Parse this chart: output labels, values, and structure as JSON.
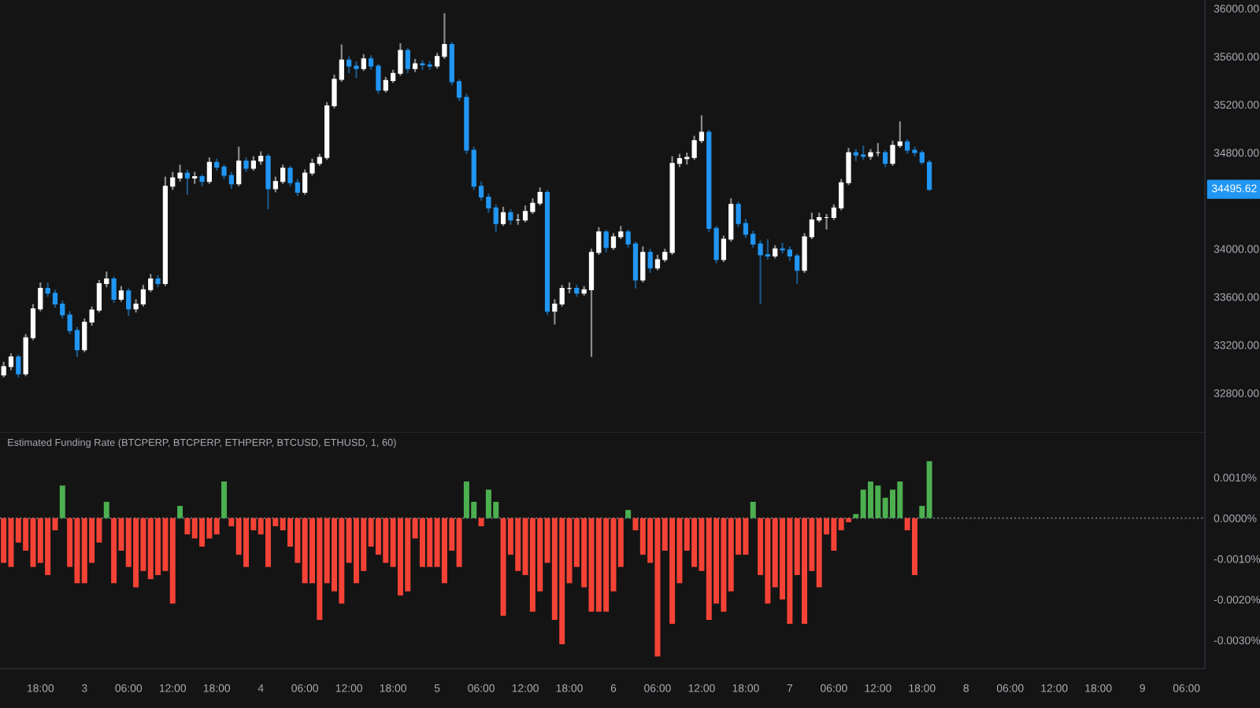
{
  "chart_data": [
    {
      "type": "candlestick",
      "categories": [
        null,
        null,
        null,
        null,
        null,
        null,
        null,
        null,
        null,
        null,
        null,
        null,
        null,
        null,
        null,
        null,
        null,
        null,
        null,
        null,
        null,
        null,
        null,
        null,
        null,
        null,
        null,
        null,
        null,
        null,
        null,
        null,
        null,
        null,
        null,
        null,
        null,
        null,
        null,
        null,
        null,
        null,
        null,
        null,
        null,
        null,
        null,
        null,
        null,
        null,
        null,
        null,
        null,
        null,
        null,
        null,
        null,
        null,
        null,
        null,
        null,
        null,
        null,
        null,
        null,
        null,
        null,
        null,
        null,
        null,
        null,
        null,
        null,
        null,
        null,
        null,
        null,
        null,
        null,
        null,
        null,
        null,
        null,
        null,
        null,
        null,
        null,
        null,
        null,
        null,
        null,
        null,
        null,
        null,
        null,
        null,
        null,
        null,
        null,
        null,
        null,
        null,
        null,
        null,
        null,
        null,
        null,
        null,
        null,
        null,
        null,
        null,
        null,
        null,
        null,
        null,
        null,
        null,
        null,
        null,
        null,
        null,
        null,
        null,
        null,
        null,
        null,
        null,
        null,
        null,
        null,
        null,
        null,
        null,
        null,
        null,
        null,
        null,
        null,
        null,
        null,
        null,
        null,
        null,
        null,
        null,
        null,
        null,
        null,
        null,
        null,
        null,
        null,
        null,
        null,
        null,
        null,
        null,
        null,
        null,
        null,
        null,
        null,
        null
      ],
      "ohlc": [
        [
          32950,
          33060,
          32930,
          33020
        ],
        [
          33020,
          33130,
          32990,
          33100
        ],
        [
          33100,
          33120,
          32930,
          32960
        ],
        [
          32960,
          33290,
          32940,
          33260
        ],
        [
          33260,
          33540,
          33240,
          33500
        ],
        [
          33500,
          33720,
          33480,
          33670
        ],
        [
          33670,
          33720,
          33600,
          33630
        ],
        [
          33630,
          33660,
          33510,
          33540
        ],
        [
          33540,
          33570,
          33420,
          33450
        ],
        [
          33450,
          33480,
          33290,
          33320
        ],
        [
          33320,
          33350,
          33100,
          33160
        ],
        [
          33160,
          33420,
          33140,
          33390
        ],
        [
          33390,
          33520,
          33360,
          33490
        ],
        [
          33490,
          33740,
          33470,
          33710
        ],
        [
          33710,
          33810,
          33680,
          33750
        ],
        [
          33750,
          33770,
          33550,
          33580
        ],
        [
          33580,
          33690,
          33560,
          33650
        ],
        [
          33650,
          33670,
          33440,
          33500
        ],
        [
          33500,
          33580,
          33470,
          33540
        ],
        [
          33540,
          33700,
          33520,
          33660
        ],
        [
          33660,
          33790,
          33640,
          33750
        ],
        [
          33750,
          33780,
          33680,
          33710
        ],
        [
          33710,
          34600,
          33690,
          34520
        ],
        [
          34520,
          34640,
          34490,
          34590
        ],
        [
          34590,
          34700,
          34560,
          34630
        ],
        [
          34630,
          34660,
          34450,
          34590
        ],
        [
          34590,
          34640,
          34540,
          34600
        ],
        [
          34600,
          34620,
          34520,
          34560
        ],
        [
          34560,
          34760,
          34540,
          34720
        ],
        [
          34720,
          34750,
          34650,
          34680
        ],
        [
          34680,
          34700,
          34580,
          34610
        ],
        [
          34610,
          34640,
          34500,
          34540
        ],
        [
          34540,
          34850,
          34520,
          34730
        ],
        [
          34730,
          34760,
          34640,
          34670
        ],
        [
          34670,
          34770,
          34650,
          34730
        ],
        [
          34730,
          34810,
          34700,
          34770
        ],
        [
          34770,
          34790,
          34330,
          34500
        ],
        [
          34500,
          34600,
          34470,
          34560
        ],
        [
          34560,
          34700,
          34540,
          34670
        ],
        [
          34670,
          34690,
          34520,
          34550
        ],
        [
          34550,
          34580,
          34440,
          34470
        ],
        [
          34470,
          34660,
          34450,
          34630
        ],
        [
          34630,
          34750,
          34610,
          34710
        ],
        [
          34710,
          34790,
          34690,
          34760
        ],
        [
          34760,
          35220,
          34740,
          35190
        ],
        [
          35190,
          35450,
          35170,
          35410
        ],
        [
          35410,
          35700,
          35390,
          35570
        ],
        [
          35570,
          35600,
          35460,
          35520
        ],
        [
          35520,
          35560,
          35420,
          35500
        ],
        [
          35500,
          35620,
          35480,
          35580
        ],
        [
          35580,
          35610,
          35490,
          35520
        ],
        [
          35520,
          35540,
          35290,
          35320
        ],
        [
          35320,
          35430,
          35300,
          35400
        ],
        [
          35400,
          35490,
          35380,
          35460
        ],
        [
          35460,
          35710,
          35440,
          35650
        ],
        [
          35650,
          35670,
          35460,
          35500
        ],
        [
          35500,
          35580,
          35470,
          35540
        ],
        [
          35540,
          35570,
          35490,
          35530
        ],
        [
          35530,
          35560,
          35490,
          35520
        ],
        [
          35520,
          35630,
          35500,
          35600
        ],
        [
          35600,
          35960,
          35580,
          35700
        ],
        [
          35700,
          35720,
          35360,
          35390
        ],
        [
          35390,
          35410,
          35230,
          35260
        ],
        [
          35260,
          35290,
          34790,
          34820
        ],
        [
          34820,
          34850,
          34490,
          34520
        ],
        [
          34520,
          34560,
          34400,
          34430
        ],
        [
          34430,
          34460,
          34300,
          34340
        ],
        [
          34340,
          34370,
          34140,
          34210
        ],
        [
          34210,
          34350,
          34190,
          34300
        ],
        [
          34300,
          34330,
          34200,
          34240
        ],
        [
          34240,
          34290,
          34200,
          34240
        ],
        [
          34240,
          34360,
          34220,
          34310
        ],
        [
          34310,
          34420,
          34290,
          34380
        ],
        [
          34380,
          34510,
          34360,
          34470
        ],
        [
          34470,
          34490,
          33450,
          33480
        ],
        [
          33480,
          33580,
          33370,
          33540
        ],
        [
          33540,
          33700,
          33520,
          33670
        ],
        [
          33670,
          33720,
          33630,
          33670
        ],
        [
          33670,
          33700,
          33600,
          33630
        ],
        [
          33630,
          33690,
          33610,
          33660
        ],
        [
          33660,
          34000,
          33100,
          33970
        ],
        [
          33970,
          34180,
          33950,
          34140
        ],
        [
          34140,
          34160,
          33970,
          34010
        ],
        [
          34010,
          34130,
          33990,
          34100
        ],
        [
          34100,
          34190,
          34080,
          34140
        ],
        [
          34140,
          34160,
          34010,
          34040
        ],
        [
          34040,
          34060,
          33670,
          33740
        ],
        [
          33740,
          34020,
          33720,
          33970
        ],
        [
          33970,
          34000,
          33800,
          33840
        ],
        [
          33840,
          33950,
          33820,
          33910
        ],
        [
          33910,
          34000,
          33890,
          33970
        ],
        [
          33970,
          34770,
          33950,
          34710
        ],
        [
          34710,
          34790,
          34680,
          34750
        ],
        [
          34750,
          34800,
          34700,
          34760
        ],
        [
          34760,
          34940,
          34740,
          34900
        ],
        [
          34900,
          35110,
          34880,
          34970
        ],
        [
          34970,
          34990,
          34140,
          34170
        ],
        [
          34170,
          34190,
          33880,
          33910
        ],
        [
          33910,
          34110,
          33890,
          34080
        ],
        [
          34080,
          34420,
          34060,
          34370
        ],
        [
          34370,
          34390,
          34180,
          34210
        ],
        [
          34210,
          34250,
          34090,
          34120
        ],
        [
          34120,
          34150,
          34010,
          34040
        ],
        [
          34040,
          34070,
          33540,
          33950
        ],
        [
          33950,
          34080,
          33910,
          33940
        ],
        [
          33940,
          34030,
          33920,
          34000
        ],
        [
          34000,
          34050,
          33960,
          33990
        ],
        [
          33990,
          34020,
          33900,
          33940
        ],
        [
          33940,
          33960,
          33710,
          33820
        ],
        [
          33820,
          34130,
          33800,
          34100
        ],
        [
          34100,
          34300,
          34080,
          34240
        ],
        [
          34240,
          34300,
          34220,
          34260
        ],
        [
          34260,
          34290,
          34160,
          34260
        ],
        [
          34260,
          34370,
          34240,
          34340
        ],
        [
          34340,
          34580,
          34320,
          34550
        ],
        [
          34550,
          34840,
          34530,
          34800
        ],
        [
          34800,
          34830,
          34730,
          34780
        ],
        [
          34780,
          34860,
          34740,
          34770
        ],
        [
          34770,
          34830,
          34740,
          34800
        ],
        [
          34800,
          34880,
          34770,
          34800
        ],
        [
          34800,
          34820,
          34680,
          34710
        ],
        [
          34710,
          34900,
          34690,
          34860
        ],
        [
          34860,
          35060,
          34840,
          34890
        ],
        [
          34890,
          34910,
          34790,
          34820
        ],
        [
          34820,
          34850,
          34770,
          34800
        ],
        [
          34800,
          34820,
          34700,
          34720
        ],
        [
          34720,
          34740,
          34480,
          34495
        ],
        null,
        null,
        null,
        null,
        null,
        null,
        null,
        null,
        null,
        null,
        null,
        null,
        null,
        null,
        null,
        null,
        null,
        null,
        null,
        null,
        null,
        null,
        null,
        null,
        null,
        null,
        null,
        null,
        null,
        null,
        null,
        null,
        null,
        null,
        null,
        null,
        null
      ],
      "colors": [
        "#ffffff",
        "#ffffff",
        "#2196f3",
        "#ffffff",
        "#ffffff",
        "#ffffff",
        "#2196f3",
        "#2196f3",
        "#2196f3",
        "#2196f3",
        "#2196f3",
        "#ffffff",
        "#ffffff",
        "#ffffff",
        "#ffffff",
        "#2196f3",
        "#ffffff",
        "#2196f3",
        "#ffffff",
        "#ffffff",
        "#ffffff",
        "#2196f3",
        "#ffffff",
        "#ffffff",
        "#ffffff",
        "#2196f3",
        "#ffffff",
        "#2196f3",
        "#ffffff",
        "#2196f3",
        "#2196f3",
        "#2196f3",
        "#ffffff",
        "#2196f3",
        "#ffffff",
        "#ffffff",
        "#2196f3",
        "#ffffff",
        "#ffffff",
        "#2196f3",
        "#2196f3",
        "#ffffff",
        "#ffffff",
        "#ffffff",
        "#ffffff",
        "#ffffff",
        "#ffffff",
        "#2196f3",
        "#2196f3",
        "#ffffff",
        "#2196f3",
        "#2196f3",
        "#ffffff",
        "#ffffff",
        "#ffffff",
        "#2196f3",
        "#ffffff",
        "#2196f3",
        "#2196f3",
        "#ffffff",
        "#ffffff",
        "#2196f3",
        "#2196f3",
        "#2196f3",
        "#2196f3",
        "#2196f3",
        "#2196f3",
        "#2196f3",
        "#ffffff",
        "#2196f3",
        "#ffffff",
        "#ffffff",
        "#ffffff",
        "#ffffff",
        "#2196f3",
        "#ffffff",
        "#ffffff",
        "#ffffff",
        "#2196f3",
        "#ffffff",
        "#ffffff",
        "#ffffff",
        "#2196f3",
        "#ffffff",
        "#ffffff",
        "#2196f3",
        "#2196f3",
        "#ffffff",
        "#2196f3",
        "#ffffff",
        "#ffffff",
        "#ffffff",
        "#ffffff",
        "#ffffff",
        "#ffffff",
        "#ffffff",
        "#2196f3",
        "#2196f3",
        "#ffffff",
        "#ffffff",
        "#2196f3",
        "#2196f3",
        "#2196f3",
        "#2196f3",
        "#2196f3",
        "#ffffff",
        "#2196f3",
        "#2196f3",
        "#2196f3",
        "#ffffff",
        "#ffffff",
        "#ffffff",
        "#ffffff",
        "#ffffff",
        "#ffffff",
        "#ffffff",
        "#2196f3",
        "#2196f3",
        "#ffffff",
        "#ffffff",
        "#2196f3",
        "#ffffff",
        "#ffffff",
        "#2196f3",
        "#2196f3",
        "#2196f3",
        "#2196f3",
        null,
        null,
        null,
        null,
        null,
        null,
        null,
        null,
        null,
        null,
        null,
        null,
        null,
        null,
        null,
        null,
        null,
        null,
        null,
        null,
        null,
        null,
        null,
        null,
        null,
        null,
        null,
        null,
        null,
        null,
        null,
        null,
        null,
        null,
        null,
        null,
        null
      ],
      "ylim": [
        32470,
        36070
      ],
      "yticks": [
        {
          "value": 32800,
          "label": "32800.00"
        },
        {
          "value": 33200,
          "label": "33200.00"
        },
        {
          "value": 33600,
          "label": "33600.00"
        },
        {
          "value": 34000,
          "label": "34000.00"
        },
        {
          "value": 34800,
          "label": "34800.00"
        },
        {
          "value": 35200,
          "label": "35200.00"
        },
        {
          "value": 35600,
          "label": "35600.00"
        },
        {
          "value": 36000,
          "label": "36000.00"
        }
      ],
      "tick_labels": "y",
      "annotations": [
        {
          "text": "34495.62",
          "y": 34495
        }
      ]
    },
    {
      "type": "bar",
      "title": "Estimated Funding Rate (BTCPERP, BTCPERP, ETHPERP, BTCUSD, ETHUSD, 1, 60)",
      "categories": [
        null,
        null,
        null,
        null,
        null,
        "18:00",
        null,
        null,
        null,
        null,
        null,
        "3",
        null,
        null,
        null,
        null,
        null,
        "06:00",
        null,
        null,
        null,
        null,
        null,
        "12:00",
        null,
        null,
        null,
        null,
        null,
        "18:00",
        null,
        null,
        null,
        null,
        null,
        "4",
        null,
        null,
        null,
        null,
        null,
        "06:00",
        null,
        null,
        null,
        null,
        null,
        "12:00",
        null,
        null,
        null,
        null,
        null,
        "18:00",
        null,
        null,
        null,
        null,
        null,
        "5",
        null,
        null,
        null,
        null,
        null,
        "06:00",
        null,
        null,
        null,
        null,
        null,
        "12:00",
        null,
        null,
        null,
        null,
        null,
        "18:00",
        null,
        null,
        null,
        null,
        null,
        "6",
        null,
        null,
        null,
        null,
        null,
        "06:00",
        null,
        null,
        null,
        null,
        null,
        "12:00",
        null,
        null,
        null,
        null,
        null,
        "18:00",
        null,
        null,
        null,
        null,
        null,
        "7",
        null,
        null,
        null,
        null,
        null,
        "06:00",
        null,
        null,
        null,
        null,
        null,
        "12:00",
        null,
        null,
        null,
        null,
        null,
        "18:00",
        null,
        null,
        null,
        null,
        null,
        "8",
        null,
        null,
        null,
        null,
        null,
        "06:00",
        null,
        null,
        null,
        null,
        null,
        "12:00",
        null,
        null,
        null,
        null,
        null,
        "18:00",
        null,
        null,
        null,
        null,
        null,
        "9",
        null,
        null,
        null,
        null,
        null,
        "06:00",
        null,
        null
      ],
      "values": [
        -0.0011,
        -0.0012,
        -0.0006,
        -0.0008,
        -0.0012,
        -0.0011,
        -0.0014,
        -0.0003,
        0.0008,
        -0.0012,
        -0.0016,
        -0.0016,
        -0.0011,
        -0.0006,
        0.0004,
        -0.0016,
        -0.0008,
        -0.0012,
        -0.0017,
        -0.0013,
        -0.0015,
        -0.0014,
        -0.0013,
        -0.0021,
        0.0003,
        -0.0004,
        -0.0005,
        -0.0007,
        -0.0005,
        -0.0004,
        0.0009,
        -0.0002,
        -0.0009,
        -0.0012,
        -0.0003,
        -0.0004,
        -0.0012,
        -0.0002,
        -0.0003,
        -0.0007,
        -0.0011,
        -0.0016,
        -0.0016,
        -0.0025,
        -0.0016,
        -0.0018,
        -0.0021,
        -0.0011,
        -0.0016,
        -0.0013,
        -0.0007,
        -0.0009,
        -0.0011,
        -0.0012,
        -0.0019,
        -0.0018,
        -0.0005,
        -0.0012,
        -0.0012,
        -0.0012,
        -0.0016,
        -0.0008,
        -0.0012,
        0.0009,
        0.0004,
        -0.0002,
        0.0007,
        0.0004,
        -0.0024,
        -0.0009,
        -0.0013,
        -0.0014,
        -0.0023,
        -0.0018,
        -0.0011,
        -0.0025,
        -0.0031,
        -0.0016,
        -0.0012,
        -0.0017,
        -0.0023,
        -0.0023,
        -0.0023,
        -0.0018,
        -0.0012,
        0.0002,
        -0.0003,
        -0.0009,
        -0.0011,
        -0.0034,
        -0.0008,
        -0.0026,
        -0.0016,
        -0.0008,
        -0.0012,
        -0.0013,
        -0.0025,
        -0.0021,
        -0.0023,
        -0.0018,
        -0.0009,
        -0.0009,
        0.0004,
        -0.0014,
        -0.0021,
        -0.0017,
        -0.002,
        -0.0026,
        -0.0014,
        -0.0026,
        -0.0013,
        -0.0017,
        -0.0004,
        -0.0008,
        -0.0003,
        -0.0001,
        0.0001,
        0.0007,
        0.0009,
        0.0008,
        0.0005,
        0.0007,
        0.0009,
        -0.0003,
        -0.0014,
        0.0003,
        0.0014,
        null,
        null,
        null,
        null,
        null,
        null,
        null,
        null,
        null,
        null,
        null,
        null,
        null,
        null,
        null,
        null,
        null,
        null,
        null,
        null,
        null,
        null,
        null,
        null,
        null,
        null,
        null,
        null,
        null,
        null,
        null,
        null,
        null,
        null,
        null,
        null,
        null
      ],
      "colors": [
        "#f44336",
        "#f44336",
        "#f44336",
        "#f44336",
        "#f44336",
        "#f44336",
        "#f44336",
        "#f44336",
        "#4caf50",
        "#f44336",
        "#f44336",
        "#f44336",
        "#f44336",
        "#f44336",
        "#4caf50",
        "#f44336",
        "#f44336",
        "#f44336",
        "#f44336",
        "#f44336",
        "#f44336",
        "#f44336",
        "#f44336",
        "#f44336",
        "#4caf50",
        "#f44336",
        "#f44336",
        "#f44336",
        "#f44336",
        "#f44336",
        "#4caf50",
        "#f44336",
        "#f44336",
        "#f44336",
        "#f44336",
        "#f44336",
        "#f44336",
        "#f44336",
        "#f44336",
        "#f44336",
        "#f44336",
        "#f44336",
        "#f44336",
        "#f44336",
        "#f44336",
        "#f44336",
        "#f44336",
        "#f44336",
        "#f44336",
        "#f44336",
        "#f44336",
        "#f44336",
        "#f44336",
        "#f44336",
        "#f44336",
        "#f44336",
        "#f44336",
        "#f44336",
        "#f44336",
        "#f44336",
        "#f44336",
        "#f44336",
        "#f44336",
        "#4caf50",
        "#4caf50",
        "#f44336",
        "#4caf50",
        "#4caf50",
        "#f44336",
        "#f44336",
        "#f44336",
        "#f44336",
        "#f44336",
        "#f44336",
        "#f44336",
        "#f44336",
        "#f44336",
        "#f44336",
        "#f44336",
        "#f44336",
        "#f44336",
        "#f44336",
        "#f44336",
        "#f44336",
        "#f44336",
        "#4caf50",
        "#f44336",
        "#f44336",
        "#f44336",
        "#f44336",
        "#f44336",
        "#f44336",
        "#f44336",
        "#f44336",
        "#f44336",
        "#f44336",
        "#f44336",
        "#f44336",
        "#f44336",
        "#f44336",
        "#f44336",
        "#f44336",
        "#4caf50",
        "#f44336",
        "#f44336",
        "#f44336",
        "#f44336",
        "#f44336",
        "#f44336",
        "#f44336",
        "#f44336",
        "#f44336",
        "#f44336",
        "#f44336",
        "#f44336",
        "#f44336",
        "#4caf50",
        "#4caf50",
        "#4caf50",
        "#4caf50",
        "#4caf50",
        "#4caf50",
        "#4caf50",
        "#f44336",
        "#f44336",
        "#4caf50",
        "#4caf50",
        null,
        null,
        null,
        null,
        null,
        null,
        null,
        null,
        null,
        null,
        null,
        null,
        null,
        null,
        null,
        null,
        null,
        null,
        null,
        null,
        null,
        null,
        null,
        null,
        null,
        null,
        null,
        null,
        null,
        null,
        null,
        null,
        null,
        null,
        null,
        null,
        null
      ],
      "ylim": [
        -0.0037,
        0.0021
      ],
      "yticks": [
        {
          "value": 0.001,
          "label": "0.0010%"
        },
        {
          "value": 0,
          "label": "0.0000%"
        },
        {
          "value": -0.001,
          "label": "-0.0010%"
        },
        {
          "value": -0.002,
          "label": "-0.0020%"
        },
        {
          "value": -0.003,
          "label": "-0.0030%"
        }
      ],
      "ref_lines": [
        {
          "axis": "y",
          "value": 0,
          "color": "#787b86",
          "line_style": "dotted"
        }
      ]
    }
  ]
}
